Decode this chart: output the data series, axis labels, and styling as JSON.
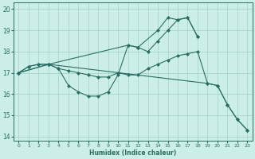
{
  "xlabel": "Humidex (Indice chaleur)",
  "bg_color": "#cceee8",
  "grid_color": "#aad4ce",
  "line_color": "#2a6e62",
  "xlim": [
    -0.5,
    23.5
  ],
  "ylim": [
    13.8,
    20.3
  ],
  "yticks": [
    14,
    15,
    16,
    17,
    18,
    19,
    20
  ],
  "xticks": [
    0,
    1,
    2,
    3,
    4,
    5,
    6,
    7,
    8,
    9,
    10,
    11,
    12,
    13,
    14,
    15,
    16,
    17,
    18,
    19,
    20,
    21,
    22,
    23
  ],
  "lines": [
    {
      "x": [
        0,
        3,
        11,
        12,
        14,
        15,
        16,
        17,
        18
      ],
      "y": [
        17.0,
        17.4,
        18.3,
        18.2,
        19.0,
        19.6,
        19.5,
        19.6,
        18.7
      ]
    },
    {
      "x": [
        0,
        1,
        2,
        3,
        4,
        5,
        6,
        7,
        8,
        9,
        10,
        11,
        12,
        13,
        14,
        15,
        16,
        17,
        18
      ],
      "y": [
        17.0,
        17.3,
        17.4,
        17.4,
        17.2,
        16.4,
        16.1,
        15.9,
        15.9,
        16.1,
        16.9,
        18.3,
        18.2,
        18.0,
        18.5,
        19.0,
        19.5,
        19.6,
        18.7
      ]
    },
    {
      "x": [
        0,
        1,
        2,
        3,
        4,
        5,
        6,
        7,
        8,
        9,
        10,
        11,
        12,
        13,
        14,
        15,
        16,
        17,
        18,
        19,
        20,
        21,
        22,
        23
      ],
      "y": [
        17.0,
        17.3,
        17.4,
        17.4,
        17.2,
        17.1,
        17.0,
        16.9,
        16.8,
        16.8,
        17.0,
        16.9,
        16.9,
        17.2,
        17.4,
        17.6,
        17.8,
        17.9,
        18.0,
        16.5,
        16.4,
        15.5,
        14.8,
        14.3
      ]
    },
    {
      "x": [
        0,
        3,
        19,
        20,
        21,
        22,
        23
      ],
      "y": [
        17.0,
        17.4,
        16.5,
        16.4,
        15.5,
        14.8,
        14.3
      ]
    }
  ]
}
